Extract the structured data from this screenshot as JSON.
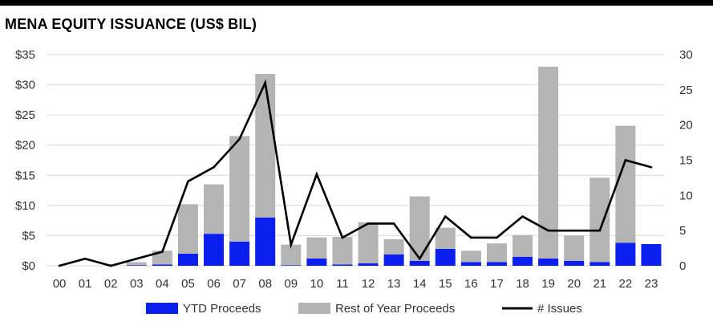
{
  "chart_data": {
    "type": "bar",
    "title": "MENA EQUITY ISSUANCE (US$ BIL)",
    "categories": [
      "00",
      "01",
      "02",
      "03",
      "04",
      "05",
      "06",
      "07",
      "08",
      "09",
      "10",
      "11",
      "12",
      "13",
      "14",
      "15",
      "16",
      "17",
      "18",
      "19",
      "20",
      "21",
      "22",
      "23"
    ],
    "series": [
      {
        "name": "YTD Proceeds",
        "kind": "stacked-bar",
        "axis": "left",
        "color": "#0a1ef0",
        "values": [
          0,
          0,
          0,
          0.1,
          0.2,
          2.0,
          5.3,
          4.0,
          8.0,
          0.1,
          1.2,
          0.2,
          0.4,
          1.9,
          0.8,
          2.8,
          0.6,
          0.6,
          1.5,
          1.2,
          0.8,
          0.6,
          3.8,
          3.6
        ]
      },
      {
        "name": "Rest of Year Proceeds",
        "kind": "stacked-bar",
        "axis": "left",
        "color": "#b4b4b4",
        "values": [
          0,
          0,
          0,
          0.5,
          2.3,
          8.2,
          8.2,
          17.5,
          23.8,
          3.4,
          3.5,
          4.6,
          6.8,
          2.5,
          10.7,
          3.5,
          1.9,
          3.1,
          3.6,
          31.8,
          4.2,
          14.0,
          19.4,
          0
        ]
      },
      {
        "name": "# Issues",
        "kind": "line",
        "axis": "right",
        "color": "#000000",
        "values": [
          0,
          1,
          0,
          1,
          2,
          12,
          14,
          18,
          26,
          3,
          13,
          4,
          6,
          6,
          1,
          7,
          4,
          4,
          7,
          5,
          5,
          5,
          15,
          14
        ]
      }
    ],
    "y_left": {
      "range": [
        0,
        35
      ],
      "ticks": [
        "$0",
        "$5",
        "$10",
        "$15",
        "$20",
        "$25",
        "$30",
        "$35"
      ]
    },
    "y_right": {
      "range": [
        0,
        30
      ],
      "ticks": [
        "0",
        "5",
        "10",
        "15",
        "20",
        "25",
        "30"
      ]
    },
    "grid": true,
    "legend": "bottom"
  }
}
